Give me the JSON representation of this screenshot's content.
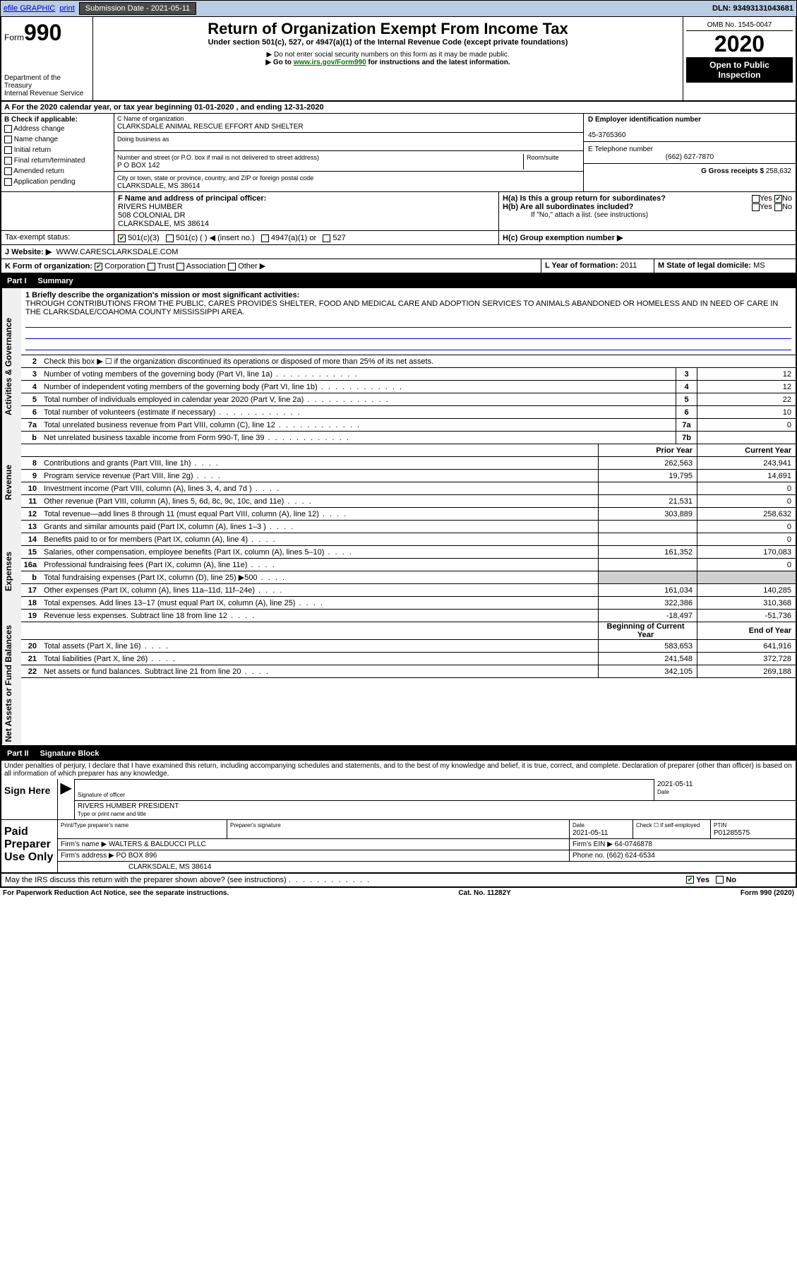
{
  "topbar": {
    "efile": "efile GRAPHIC",
    "print": "print",
    "submission_label": "Submission Date - 2021-05-11",
    "dln": "DLN: 93493131043681"
  },
  "header": {
    "form_label": "Form",
    "form_number": "990",
    "dept": "Department of the Treasury",
    "irs": "Internal Revenue Service",
    "title": "Return of Organization Exempt From Income Tax",
    "subtitle": "Under section 501(c), 527, or 4947(a)(1) of the Internal Revenue Code (except private foundations)",
    "note1": "▶ Do not enter social security numbers on this form as it may be made public.",
    "note2_pre": "▶ Go to ",
    "note2_link": "www.irs.gov/Form990",
    "note2_post": " for instructions and the latest information.",
    "omb": "OMB No. 1545-0047",
    "year": "2020",
    "badge": "Open to Public Inspection"
  },
  "row_a": "A For the 2020 calendar year, or tax year beginning 01-01-2020   , and ending 12-31-2020",
  "box_b": {
    "label": "B Check if applicable:",
    "items": [
      "Address change",
      "Name change",
      "Initial return",
      "Final return/terminated",
      "Amended return",
      "Application pending"
    ]
  },
  "box_c": {
    "name_label": "C Name of organization",
    "name": "CLARKSDALE ANIMAL RESCUE EFFORT AND SHELTER",
    "dba_label": "Doing business as",
    "street_label": "Number and street (or P.O. box if mail is not delivered to street address)",
    "room_label": "Room/suite",
    "street": "P O BOX 142",
    "city_label": "City or town, state or province, country, and ZIP or foreign postal code",
    "city": "CLARKSDALE, MS  38614"
  },
  "box_d": {
    "label": "D Employer identification number",
    "value": "45-3765360"
  },
  "box_e": {
    "label": "E Telephone number",
    "value": "(662) 627-7870"
  },
  "box_g": {
    "label": "G Gross receipts $",
    "value": "258,632"
  },
  "box_f": {
    "label": "F  Name and address of principal officer:",
    "name": "RIVERS HUMBER",
    "addr1": "508 COLONIAL DR",
    "addr2": "CLARKSDALE, MS  38614"
  },
  "box_h": {
    "a": "H(a)  Is this a group return for subordinates?",
    "b": "H(b)  Are all subordinates included?",
    "b_note": "If \"No,\" attach a list. (see instructions)",
    "c": "H(c)  Group exemption number ▶",
    "yes": "Yes",
    "no": "No"
  },
  "tax_status": {
    "label": "Tax-exempt status:",
    "o1": "501(c)(3)",
    "o2": "501(c) (  ) ◀ (insert no.)",
    "o3": "4947(a)(1) or",
    "o4": "527"
  },
  "box_j": {
    "label": "J Website: ▶",
    "value": "WWW.CARESCLARKSDALE.COM"
  },
  "box_k": {
    "label": "K Form of organization:",
    "o1": "Corporation",
    "o2": "Trust",
    "o3": "Association",
    "o4": "Other ▶"
  },
  "box_l": {
    "label": "L Year of formation:",
    "value": "2011"
  },
  "box_m": {
    "label": "M State of legal domicile:",
    "value": "MS"
  },
  "part1": {
    "label": "Part I",
    "title": "Summary"
  },
  "side_labels": {
    "gov": "Activities & Governance",
    "rev": "Revenue",
    "exp": "Expenses",
    "net": "Net Assets or Fund Balances"
  },
  "line1": {
    "label": "1 Briefly describe the organization's mission or most significant activities:",
    "text": "THROUGH CONTRIBUTIONS FROM THE PUBLIC, CARES PROVIDES SHELTER, FOOD AND MEDICAL CARE AND ADOPTION SERVICES TO ANIMALS ABANDONED OR HOMELESS AND IN NEED OF CARE IN THE CLARKSDALE/COAHOMA COUNTY MISSISSIPPI AREA."
  },
  "line2": "Check this box ▶ ☐  if the organization discontinued its operations or disposed of more than 25% of its net assets.",
  "lines_gov": [
    {
      "n": "3",
      "t": "Number of voting members of the governing body (Part VI, line 1a)",
      "box": "3",
      "v": "12"
    },
    {
      "n": "4",
      "t": "Number of independent voting members of the governing body (Part VI, line 1b)",
      "box": "4",
      "v": "12"
    },
    {
      "n": "5",
      "t": "Total number of individuals employed in calendar year 2020 (Part V, line 2a)",
      "box": "5",
      "v": "22"
    },
    {
      "n": "6",
      "t": "Total number of volunteers (estimate if necessary)",
      "box": "6",
      "v": "10"
    },
    {
      "n": "7a",
      "t": "Total unrelated business revenue from Part VIII, column (C), line 12",
      "box": "7a",
      "v": "0"
    },
    {
      "n": "b",
      "t": "Net unrelated business taxable income from Form 990-T, line 39",
      "box": "7b",
      "v": ""
    }
  ],
  "col_headers": {
    "prior": "Prior Year",
    "current": "Current Year",
    "begin": "Beginning of Current Year",
    "end": "End of Year"
  },
  "lines_rev": [
    {
      "n": "8",
      "t": "Contributions and grants (Part VIII, line 1h)",
      "p": "262,563",
      "c": "243,941"
    },
    {
      "n": "9",
      "t": "Program service revenue (Part VIII, line 2g)",
      "p": "19,795",
      "c": "14,691"
    },
    {
      "n": "10",
      "t": "Investment income (Part VIII, column (A), lines 3, 4, and 7d )",
      "p": "",
      "c": "0"
    },
    {
      "n": "11",
      "t": "Other revenue (Part VIII, column (A), lines 5, 6d, 8c, 9c, 10c, and 11e)",
      "p": "21,531",
      "c": "0"
    },
    {
      "n": "12",
      "t": "Total revenue—add lines 8 through 11 (must equal Part VIII, column (A), line 12)",
      "p": "303,889",
      "c": "258,632"
    }
  ],
  "lines_exp": [
    {
      "n": "13",
      "t": "Grants and similar amounts paid (Part IX, column (A), lines 1–3 )",
      "p": "",
      "c": "0"
    },
    {
      "n": "14",
      "t": "Benefits paid to or for members (Part IX, column (A), line 4)",
      "p": "",
      "c": "0"
    },
    {
      "n": "15",
      "t": "Salaries, other compensation, employee benefits (Part IX, column (A), lines 5–10)",
      "p": "161,352",
      "c": "170,083"
    },
    {
      "n": "16a",
      "t": "Professional fundraising fees (Part IX, column (A), line 11e)",
      "p": "",
      "c": "0"
    },
    {
      "n": "b",
      "t": "Total fundraising expenses (Part IX, column (D), line 25) ▶500",
      "p": "",
      "c": "",
      "shaded": true
    },
    {
      "n": "17",
      "t": "Other expenses (Part IX, column (A), lines 11a–11d, 11f–24e)",
      "p": "161,034",
      "c": "140,285"
    },
    {
      "n": "18",
      "t": "Total expenses. Add lines 13–17 (must equal Part IX, column (A), line 25)",
      "p": "322,386",
      "c": "310,368"
    },
    {
      "n": "19",
      "t": "Revenue less expenses. Subtract line 18 from line 12",
      "p": "-18,497",
      "c": "-51,736"
    }
  ],
  "lines_net": [
    {
      "n": "20",
      "t": "Total assets (Part X, line 16)",
      "p": "583,653",
      "c": "641,916"
    },
    {
      "n": "21",
      "t": "Total liabilities (Part X, line 26)",
      "p": "241,548",
      "c": "372,728"
    },
    {
      "n": "22",
      "t": "Net assets or fund balances. Subtract line 21 from line 20",
      "p": "342,105",
      "c": "269,188"
    }
  ],
  "part2": {
    "label": "Part II",
    "title": "Signature Block"
  },
  "declaration": "Under penalties of perjury, I declare that I have examined this return, including accompanying schedules and statements, and to the best of my knowledge and belief, it is true, correct, and complete. Declaration of preparer (other than officer) is based on all information of which preparer has any knowledge.",
  "sign": {
    "label": "Sign Here",
    "sig_officer": "Signature of officer",
    "date_label": "Date",
    "date": "2021-05-11",
    "name": "RIVERS HUMBER  PRESIDENT",
    "name_label": "Type or print name and title"
  },
  "preparer": {
    "label": "Paid Preparer Use Only",
    "print_name": "Print/Type preparer's name",
    "sig": "Preparer's signature",
    "date_label": "Date",
    "date": "2021-05-11",
    "check_label": "Check ☐ if self-employed",
    "ptin_label": "PTIN",
    "ptin": "P01285575",
    "firm_name_label": "Firm's name     ▶",
    "firm_name": "WALTERS & BALDUCCI PLLC",
    "firm_ein_label": "Firm's EIN ▶",
    "firm_ein": "64-0746878",
    "firm_addr_label": "Firm's address ▶",
    "firm_addr1": "PO BOX 896",
    "firm_addr2": "CLARKSDALE, MS  38614",
    "phone_label": "Phone no.",
    "phone": "(662) 624-6534"
  },
  "discuss": {
    "text": "May the IRS discuss this return with the preparer shown above? (see instructions)",
    "yes": "Yes",
    "no": "No"
  },
  "footer": {
    "left": "For Paperwork Reduction Act Notice, see the separate instructions.",
    "mid": "Cat. No. 11282Y",
    "right": "Form 990 (2020)"
  }
}
